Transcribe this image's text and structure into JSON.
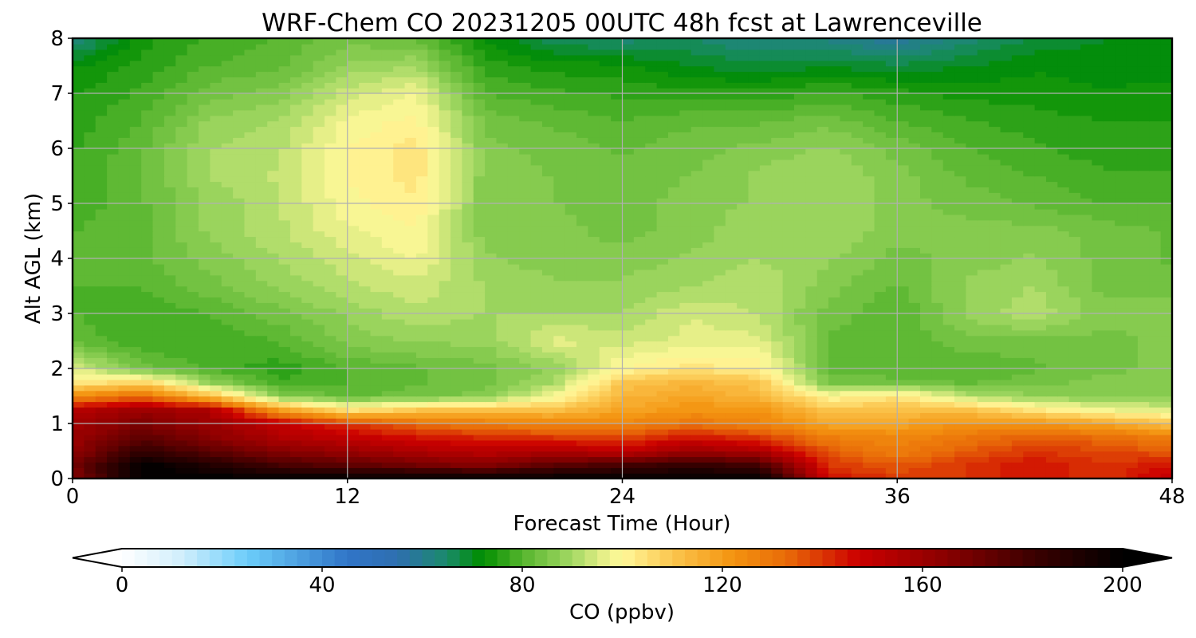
{
  "chart_data": {
    "type": "heatmap",
    "title": "WRF-Chem CO  20231205 00UTC 48h fcst at Lawrenceville",
    "xlabel": "Forecast Time (Hour)",
    "ylabel": "Alt AGL (km)",
    "xlim": [
      0,
      48
    ],
    "ylim": [
      0,
      8
    ],
    "xticks": [
      0,
      12,
      24,
      36,
      48
    ],
    "yticks": [
      0,
      1,
      2,
      3,
      4,
      5,
      6,
      7,
      8
    ],
    "grid": true,
    "x": [
      0,
      3,
      6,
      9,
      12,
      15,
      18,
      21,
      24,
      27,
      30,
      33,
      36,
      39,
      42,
      45,
      48
    ],
    "y": [
      0,
      0.25,
      0.5,
      0.75,
      1,
      1.25,
      1.5,
      1.75,
      2,
      2.5,
      3,
      3.5,
      4,
      4.5,
      5,
      5.5,
      6,
      6.5,
      7,
      7.5,
      8
    ],
    "values": [
      [
        165,
        200,
        200,
        200,
        200,
        200,
        200,
        200,
        200,
        200,
        200,
        145,
        140,
        140,
        145,
        140,
        150
      ],
      [
        168,
        200,
        190,
        180,
        175,
        170,
        165,
        175,
        180,
        185,
        180,
        140,
        135,
        140,
        145,
        140,
        145
      ],
      [
        162,
        185,
        175,
        165,
        160,
        155,
        152,
        155,
        150,
        160,
        155,
        135,
        128,
        135,
        140,
        138,
        135
      ],
      [
        160,
        175,
        165,
        155,
        150,
        145,
        142,
        140,
        138,
        145,
        140,
        128,
        125,
        130,
        135,
        132,
        128
      ],
      [
        158,
        168,
        160,
        150,
        140,
        132,
        128,
        125,
        126,
        130,
        126,
        118,
        118,
        122,
        122,
        118,
        110
      ],
      [
        152,
        160,
        155,
        120,
        104,
        110,
        112,
        112,
        118,
        122,
        122,
        110,
        112,
        112,
        104,
        98,
        96
      ],
      [
        125,
        132,
        112,
        86,
        82,
        84,
        86,
        98,
        114,
        118,
        114,
        100,
        104,
        92,
        88,
        86,
        86
      ],
      [
        102,
        108,
        88,
        78,
        80,
        82,
        84,
        90,
        110,
        114,
        110,
        84,
        84,
        82,
        84,
        86,
        86
      ],
      [
        96,
        84,
        79,
        76,
        80,
        82,
        84,
        88,
        100,
        104,
        102,
        82,
        80,
        80,
        82,
        84,
        86
      ],
      [
        82,
        78,
        78,
        80,
        86,
        88,
        88,
        96,
        94,
        96,
        96,
        82,
        80,
        84,
        84,
        84,
        86
      ],
      [
        80,
        78,
        80,
        84,
        88,
        92,
        90,
        90,
        90,
        95,
        92,
        84,
        80,
        88,
        92,
        86,
        86
      ],
      [
        80,
        80,
        84,
        88,
        92,
        94,
        90,
        88,
        88,
        90,
        92,
        86,
        82,
        88,
        90,
        84,
        84
      ],
      [
        80,
        82,
        86,
        90,
        94,
        98,
        88,
        86,
        86,
        88,
        90,
        88,
        84,
        86,
        88,
        84,
        82
      ],
      [
        80,
        82,
        88,
        92,
        97,
        100,
        86,
        86,
        84,
        86,
        90,
        90,
        86,
        86,
        86,
        84,
        82
      ],
      [
        78,
        82,
        88,
        92,
        99,
        102,
        86,
        85,
        84,
        86,
        88,
        90,
        86,
        84,
        82,
        80,
        80
      ],
      [
        78,
        82,
        90,
        93,
        100,
        104,
        86,
        85,
        84,
        85,
        88,
        90,
        86,
        82,
        80,
        78,
        78
      ],
      [
        77,
        82,
        90,
        92,
        100,
        104,
        86,
        84,
        82,
        84,
        86,
        88,
        84,
        80,
        78,
        76,
        76
      ],
      [
        76,
        80,
        88,
        90,
        98,
        101,
        84,
        82,
        80,
        82,
        82,
        84,
        80,
        78,
        76,
        75,
        75
      ],
      [
        75,
        78,
        84,
        86,
        94,
        98,
        80,
        78,
        77,
        76,
        76,
        78,
        76,
        74,
        74,
        73,
        73
      ],
      [
        72,
        76,
        80,
        82,
        88,
        90,
        76,
        74,
        73,
        70,
        68,
        70,
        68,
        70,
        72,
        71,
        72
      ],
      [
        62,
        74,
        78,
        80,
        84,
        82,
        72,
        66,
        64,
        65,
        62,
        62,
        58,
        64,
        68,
        70,
        70
      ]
    ]
  },
  "colorbar": {
    "label": "CO  (ppbv)",
    "min": 0,
    "max": 200,
    "step": 2.5,
    "ticks": [
      0,
      40,
      80,
      120,
      160,
      200
    ],
    "extend": "both",
    "colormap": [
      {
        "v": 0,
        "c": "#ffffff"
      },
      {
        "v": 12,
        "c": "#d0eefc"
      },
      {
        "v": 25,
        "c": "#6ccdfa"
      },
      {
        "v": 45,
        "c": "#3075c8"
      },
      {
        "v": 55,
        "c": "#2f6fb0"
      },
      {
        "v": 65,
        "c": "#1a8a6a"
      },
      {
        "v": 72,
        "c": "#008d00"
      },
      {
        "v": 80,
        "c": "#55b52d"
      },
      {
        "v": 90,
        "c": "#a4d864"
      },
      {
        "v": 97,
        "c": "#eef28c"
      },
      {
        "v": 100,
        "c": "#fff89a"
      },
      {
        "v": 110,
        "c": "#fbc64f"
      },
      {
        "v": 122,
        "c": "#f49410"
      },
      {
        "v": 133,
        "c": "#e86a08"
      },
      {
        "v": 147,
        "c": "#cc0000"
      },
      {
        "v": 165,
        "c": "#880000"
      },
      {
        "v": 182,
        "c": "#3c0000"
      },
      {
        "v": 200,
        "c": "#000000"
      }
    ]
  }
}
